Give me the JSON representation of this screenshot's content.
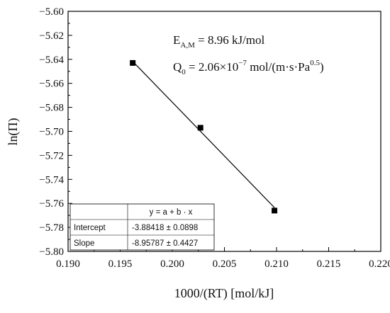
{
  "chart_data": {
    "type": "scatter",
    "xlabel": "1000/(RT) [mol/kJ]",
    "ylabel": "ln(Π)",
    "xlim": [
      0.19,
      0.22
    ],
    "ylim": [
      -5.8,
      -5.6
    ],
    "x_ticks": [
      "0.190",
      "0.195",
      "0.200",
      "0.205",
      "0.210",
      "0.215",
      "0.220"
    ],
    "y_ticks": [
      "−5.60",
      "−5.62",
      "−5.64",
      "−5.66",
      "−5.68",
      "−5.70",
      "−5.72",
      "−5.74",
      "−5.76",
      "−5.78",
      "−5.80"
    ],
    "x_tick_values": [
      0.19,
      0.195,
      0.2,
      0.205,
      0.21,
      0.215,
      0.22
    ],
    "y_tick_values": [
      -5.6,
      -5.62,
      -5.64,
      -5.66,
      -5.68,
      -5.7,
      -5.72,
      -5.74,
      -5.76,
      -5.78,
      -5.8
    ],
    "points": [
      {
        "x": 0.1962,
        "y": -5.643
      },
      {
        "x": 0.2027,
        "y": -5.697
      },
      {
        "x": 0.2098,
        "y": -5.766
      }
    ],
    "fit": {
      "intercept": -3.88418,
      "slope": -8.95787
    },
    "grid": false,
    "annotations": {
      "ea_main": "E",
      "ea_sub": "A,M",
      "ea_value": " = 8.96 kJ/mol",
      "q_main": "Q",
      "q_sub": "0",
      "q_value_a": " = 2.06×10",
      "q_exp": "−7",
      "q_value_b": " mol/(m·s·Pa",
      "q_exp2": "0.5",
      "q_value_c": ")"
    },
    "fit_table": {
      "equation": "y = a + b · x",
      "rows": [
        {
          "label": "Intercept",
          "value": "-3.88418 ± 0.0898"
        },
        {
          "label": "Slope",
          "value": "-8.95787 ± 0.4427"
        }
      ]
    },
    "colors": {
      "marker": "#000000",
      "line": "#000000",
      "axis": "#000000"
    }
  }
}
